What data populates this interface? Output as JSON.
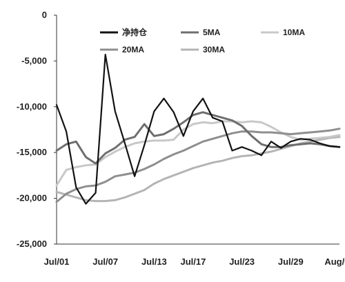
{
  "chart_data": {
    "type": "line",
    "title": "",
    "xlabel": "",
    "ylabel": "",
    "ylim": [
      -25000,
      0
    ],
    "yticks": [
      0,
      -5000,
      -10000,
      -15000,
      -20000,
      -25000
    ],
    "ytick_labels": [
      "0",
      "-5,000",
      "-10,000",
      "-15,000",
      "-20,000",
      "-25,000"
    ],
    "x_count": 30,
    "x_tick_positions": [
      0,
      5,
      10,
      14,
      19,
      24,
      29
    ],
    "x_tick_labels": [
      "Jul/01",
      "Jul/07",
      "Jul/13",
      "Jul/17",
      "Jul/23",
      "Jul/29",
      "Aug/04"
    ],
    "grid": false,
    "legend_position": "top",
    "series": [
      {
        "name": "净持仓",
        "color": "#111111",
        "values": [
          -9800,
          -12700,
          -18800,
          -20600,
          -19400,
          -4300,
          -10500,
          -14000,
          -17600,
          -14200,
          -10500,
          -9100,
          -10600,
          -13200,
          -10500,
          -9100,
          -11200,
          -11600,
          -14800,
          -14400,
          -14800,
          -15300,
          -13800,
          -14500,
          -13800,
          -13500,
          -13600,
          -14000,
          -14300,
          -14400
        ]
      },
      {
        "name": "5MA",
        "color": "#6e6e6e",
        "values": [
          -14800,
          -14100,
          -13800,
          -15500,
          -16200,
          -15100,
          -14500,
          -13600,
          -13300,
          -11900,
          -13200,
          -13000,
          -12400,
          -11700,
          -10900,
          -10600,
          -10900,
          -11200,
          -11500,
          -12100,
          -13200,
          -14100,
          -14400,
          -14400,
          -14200,
          -14100,
          -14000,
          -14100,
          -14300,
          -14400
        ]
      },
      {
        "name": "10MA",
        "color": "#c8c8c8",
        "values": [
          -18600,
          -16900,
          -16600,
          -16400,
          -16300,
          -15500,
          -14900,
          -14400,
          -14000,
          -13800,
          -13700,
          -13700,
          -13600,
          -12500,
          -11900,
          -11700,
          -11800,
          -11600,
          -11600,
          -11700,
          -11600,
          -11700,
          -12200,
          -12800,
          -13300,
          -13600,
          -13500,
          -13400,
          -13300,
          -13100
        ]
      },
      {
        "name": "20MA",
        "color": "#8e8e8e",
        "values": [
          -20400,
          -19500,
          -19000,
          -18700,
          -18600,
          -18200,
          -17600,
          -17400,
          -17200,
          -16800,
          -16300,
          -15700,
          -15200,
          -14800,
          -14300,
          -13800,
          -13500,
          -13200,
          -12900,
          -12700,
          -12700,
          -12800,
          -12800,
          -12900,
          -13000,
          -12900,
          -12800,
          -12700,
          -12600,
          -12400
        ]
      },
      {
        "name": "30MA",
        "color": "#b4b4b4",
        "values": [
          -19300,
          -19600,
          -19900,
          -20200,
          -20300,
          -20300,
          -20200,
          -19900,
          -19500,
          -19100,
          -18400,
          -17900,
          -17500,
          -17100,
          -16700,
          -16400,
          -16100,
          -15900,
          -15600,
          -15400,
          -15300,
          -15100,
          -14900,
          -14600,
          -14300,
          -14000,
          -13800,
          -13600,
          -13400,
          -13300
        ]
      }
    ]
  }
}
